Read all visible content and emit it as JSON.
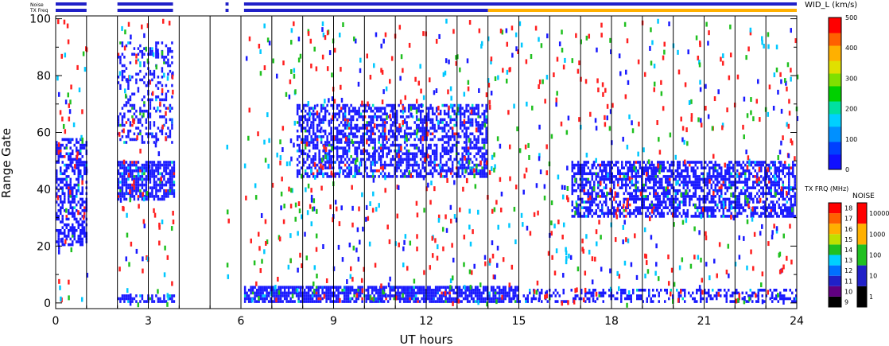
{
  "status_bars": {
    "noise_label": "Noise",
    "txfreq_label": "TX Freq"
  },
  "chart_data": {
    "type": "heatmap",
    "xlabel": "UT hours",
    "ylabel": "Range Gate",
    "xlim": [
      0,
      24
    ],
    "ylim": [
      -2,
      101
    ],
    "x_ticks": [
      0,
      3,
      6,
      9,
      12,
      15,
      18,
      21,
      24
    ],
    "y_ticks": [
      0,
      20,
      40,
      60,
      80,
      100
    ],
    "vertical_gap_lines_hours": [
      1,
      2,
      3,
      4,
      5,
      6,
      7,
      8,
      9,
      10,
      11,
      12,
      13,
      14,
      15,
      16,
      17,
      18,
      19,
      20,
      21,
      22,
      23
    ],
    "data_intervals_hours": [
      [
        0,
        1
      ],
      [
        2,
        3.8
      ],
      [
        5.5,
        5.6
      ],
      [
        6.1,
        24
      ]
    ],
    "txfreq_yellow_from_hour": 14,
    "scatter_regions": [
      {
        "x": [
          0,
          1
        ],
        "y": [
          20,
          58
        ],
        "color": "#1a1aff",
        "density": 0.55
      },
      {
        "x": [
          2,
          3.85
        ],
        "y": [
          36,
          50
        ],
        "color": "#1a1aff",
        "density": 0.75
      },
      {
        "x": [
          2,
          3.85
        ],
        "y": [
          0,
          3
        ],
        "color": "#1a1aff",
        "density": 0.6
      },
      {
        "x": [
          6.1,
          15
        ],
        "y": [
          0,
          6
        ],
        "color": "#1a1aff",
        "density": 0.8
      },
      {
        "x": [
          15,
          24
        ],
        "y": [
          0,
          5
        ],
        "color": "#1a1aff",
        "density": 0.35
      },
      {
        "x": [
          7.8,
          14
        ],
        "y": [
          44,
          70
        ],
        "color": "#1a1aff",
        "density": 0.55
      },
      {
        "x": [
          16.7,
          24
        ],
        "y": [
          30,
          50
        ],
        "color": "#1a1aff",
        "density": 0.6
      },
      {
        "x": [
          2,
          3.8
        ],
        "y": [
          56,
          92
        ],
        "color": "#1a1aff",
        "density": 0.3
      }
    ],
    "colorbars": [
      {
        "title": "WID_L (km/s)",
        "min": 0,
        "max": 500,
        "ticks": [
          0,
          100,
          200,
          300,
          400,
          500
        ]
      },
      {
        "title": "TX FRQ (MHz)",
        "ticks": [
          9,
          10,
          11,
          12,
          13,
          14,
          15,
          16,
          17,
          18
        ]
      },
      {
        "title": "NOISE",
        "ticks": [
          "1",
          "10",
          "100",
          "1000",
          "10000"
        ]
      }
    ]
  }
}
